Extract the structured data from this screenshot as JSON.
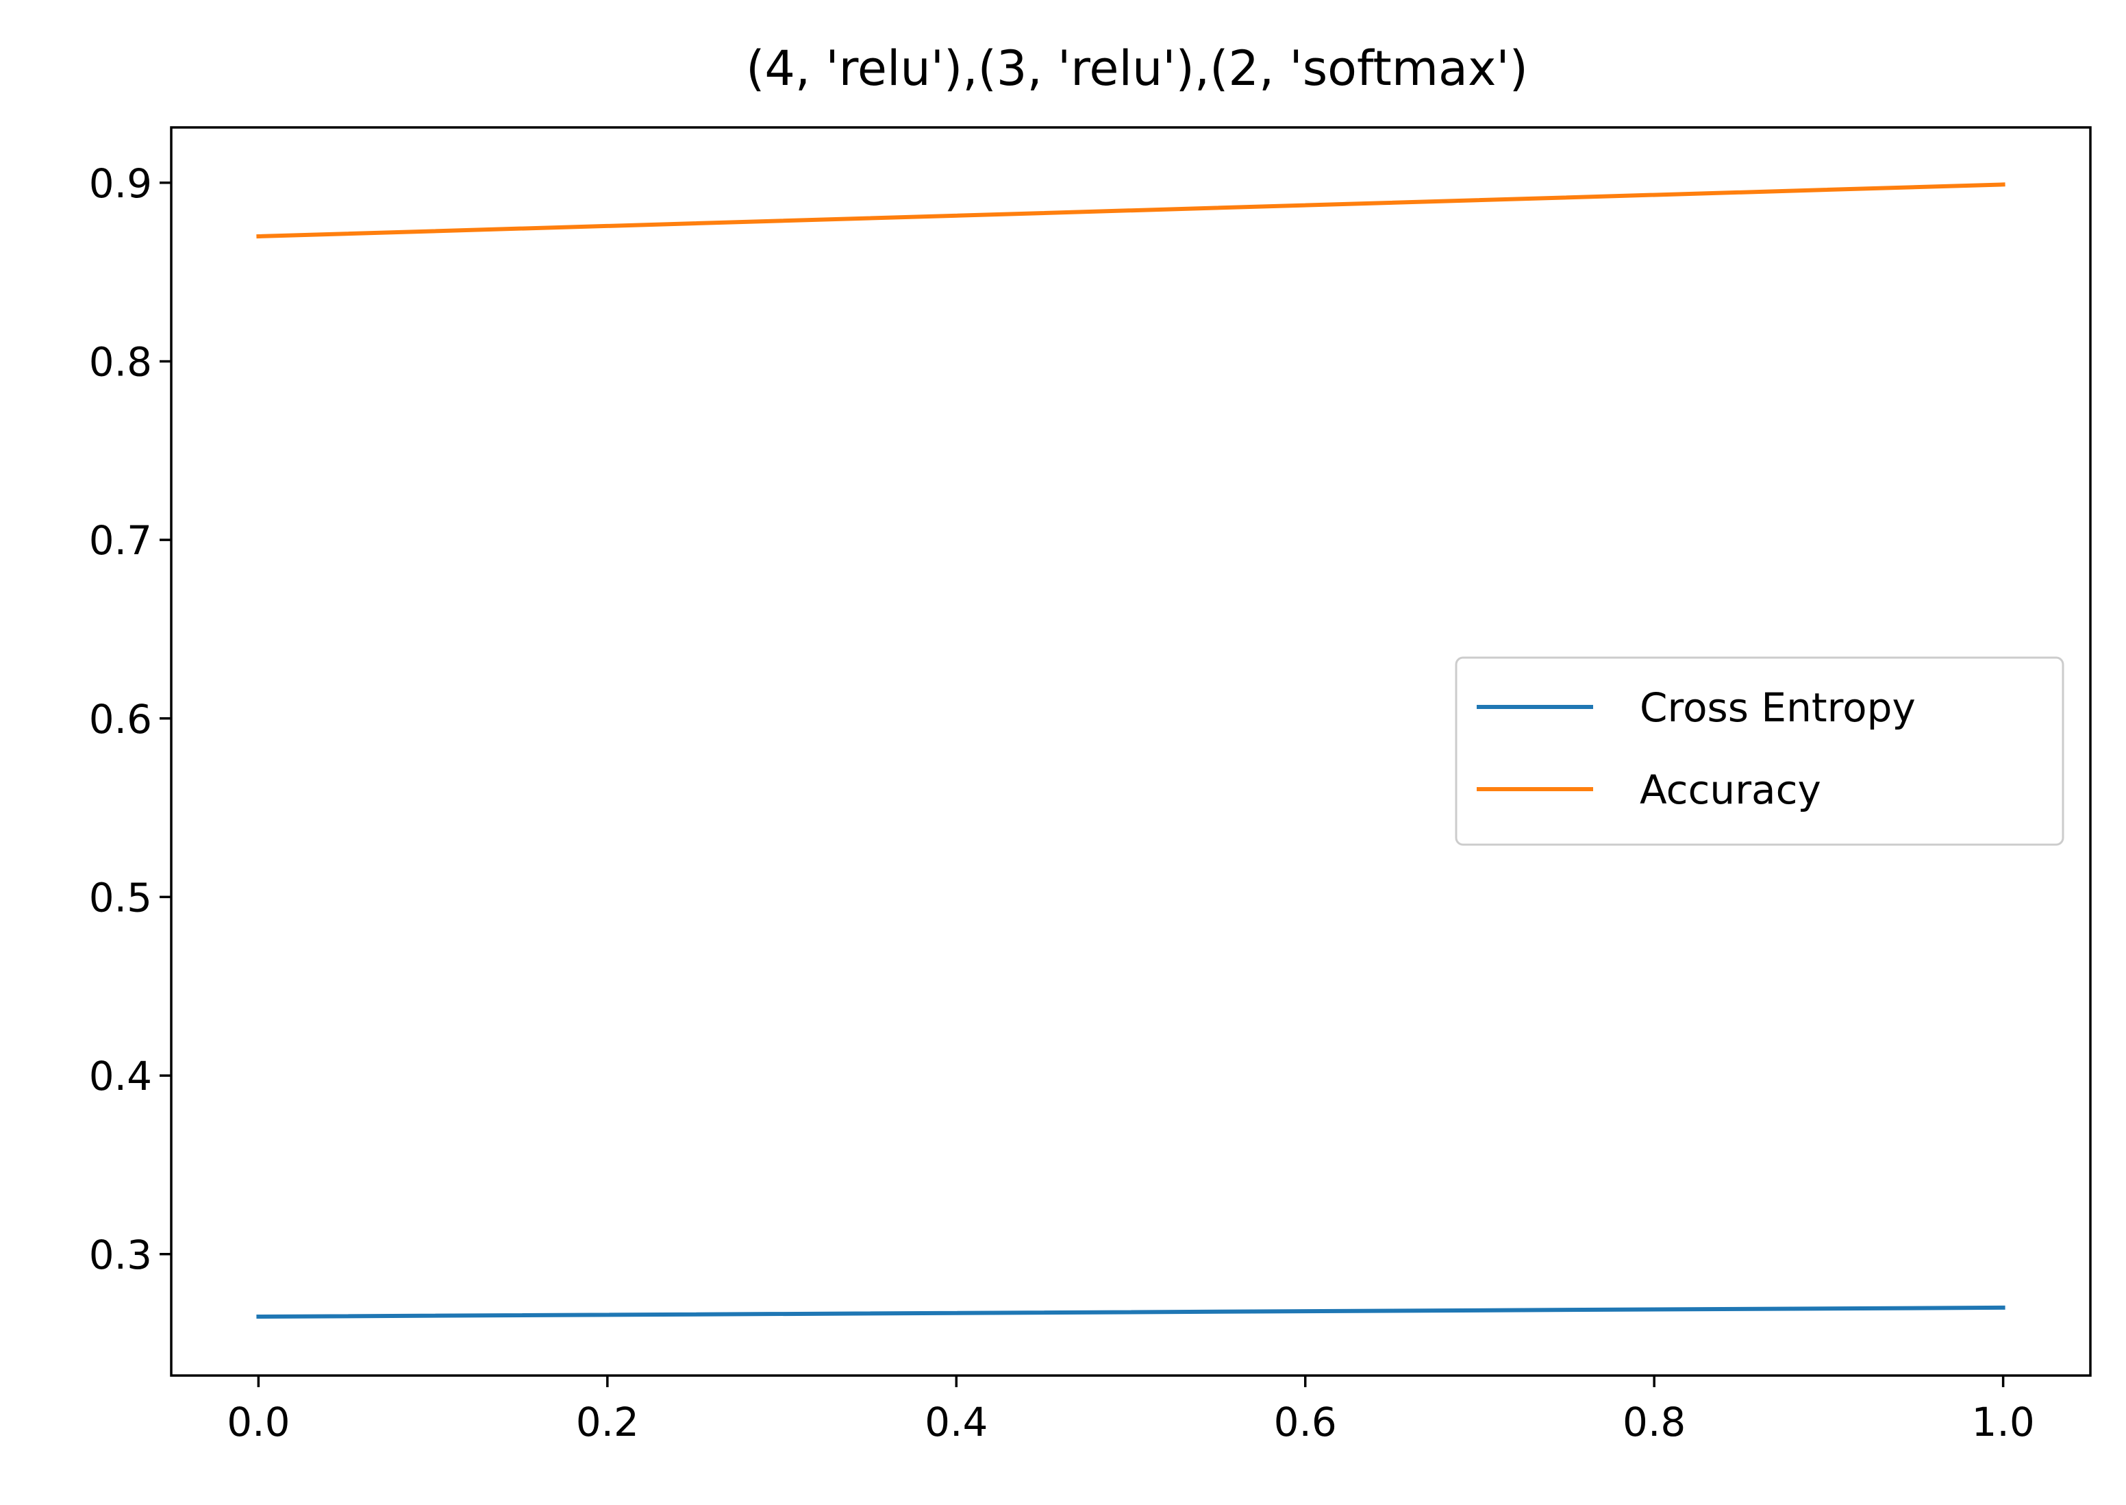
{
  "chart_data": {
    "type": "line",
    "title": "(4, 'relu'),(3, 'relu'),(2, 'softmax')",
    "xlabel": "",
    "ylabel": "",
    "x": [
      0.0,
      1.0
    ],
    "xlim": [
      -0.05,
      1.05
    ],
    "ylim": [
      0.232,
      0.931
    ],
    "xticks": [
      0.0,
      0.2,
      0.4,
      0.6,
      0.8,
      1.0
    ],
    "xtick_labels": [
      "0.0",
      "0.2",
      "0.4",
      "0.6",
      "0.8",
      "1.0"
    ],
    "yticks": [
      0.3,
      0.4,
      0.5,
      0.6,
      0.7,
      0.8,
      0.9
    ],
    "ytick_labels": [
      "0.3",
      "0.4",
      "0.5",
      "0.6",
      "0.7",
      "0.8",
      "0.9"
    ],
    "grid": false,
    "legend_position": "center-right",
    "series": [
      {
        "name": "Cross Entropy",
        "color": "#1f77b4",
        "values": [
          0.265,
          0.27
        ]
      },
      {
        "name": "Accuracy",
        "color": "#ff7f0e",
        "values": [
          0.87,
          0.899
        ]
      }
    ]
  }
}
